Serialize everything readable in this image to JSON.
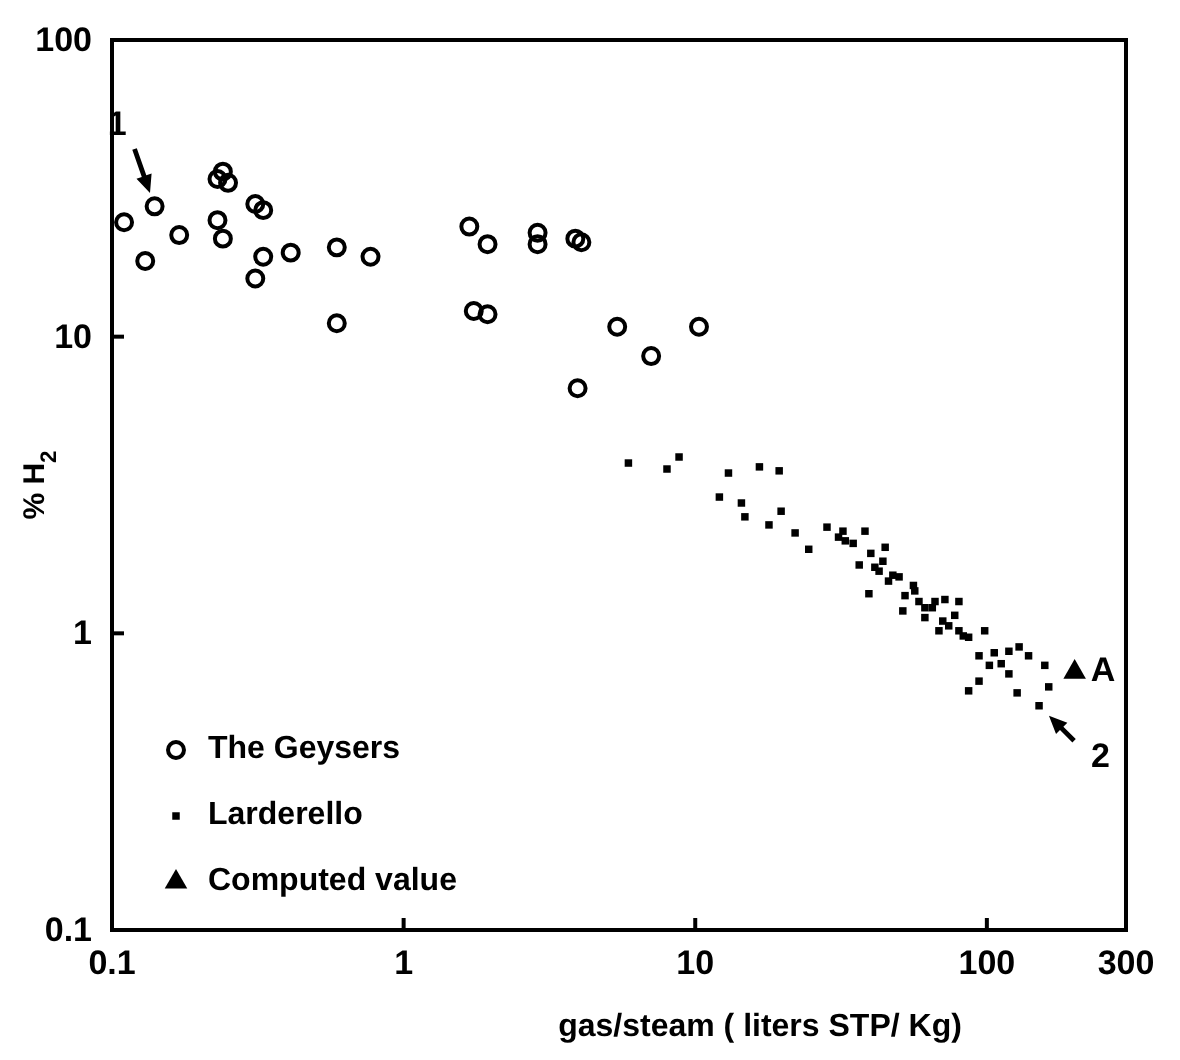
{
  "chart_data": {
    "type": "scatter",
    "xlabel": "gas/steam ( liters STP/ Kg)",
    "ylabel": "% H$_{2}$",
    "log": "xy",
    "xlim": [
      0.1,
      300
    ],
    "xticks": [
      0.1,
      1,
      10,
      100,
      300
    ],
    "ylim": [
      0.1,
      100
    ],
    "yticks": [
      0.1,
      1,
      10,
      100
    ],
    "grid": false,
    "legend": "bottom left",
    "series": [
      {
        "name": "The Geysers",
        "color": "#000000",
        "marker": "circle",
        "x": [
          0.11,
          0.14,
          0.13,
          0.17,
          0.23,
          0.24,
          0.25,
          0.23,
          0.24,
          0.31,
          0.33,
          0.33,
          0.31,
          0.41,
          0.59,
          0.77,
          0.59,
          1.68,
          1.94,
          1.74,
          1.94,
          2.88,
          2.88,
          3.88,
          4.07,
          5.4,
          7.06,
          3.95,
          10.3
        ],
        "values": [
          24.3,
          27.5,
          18,
          22,
          34,
          36,
          33,
          24.7,
          21.4,
          28,
          26.7,
          18.6,
          15.7,
          19.2,
          20,
          18.6,
          11.1,
          23.5,
          20.5,
          12.2,
          11.9,
          22.4,
          20.5,
          21.4,
          20.8,
          10.8,
          8.6,
          6.7,
          10.8
        ]
      },
      {
        "name": "Larderello",
        "color": "#000000",
        "marker": "square",
        "x": [
          5.9,
          8.0,
          8.8,
          13,
          16.6,
          19.4,
          12.1,
          14.4,
          14.8,
          19.7,
          17.9,
          22,
          24.5,
          28.3,
          32.1,
          32.7,
          34.8,
          38.2,
          44.8,
          44,
          41.3,
          47.6,
          39.4,
          50,
          52.4,
          56.6,
          58.5,
          51.5,
          61.3,
          66.4,
          71.8,
          80.2,
          61.3,
          70.6,
          77.6,
          68.5,
          80.2,
          86.6,
          98.3,
          94,
          106,
          119,
          129,
          139,
          102,
          112,
          119,
          158,
          94,
          86.6,
          127,
          163,
          151,
          42.7,
          46,
          56,
          65,
          74,
          83,
          36.5,
          31,
          40
        ],
        "values": [
          3.75,
          3.58,
          3.93,
          3.47,
          3.64,
          3.53,
          2.88,
          2.75,
          2.47,
          2.58,
          2.32,
          2.18,
          1.92,
          2.28,
          2.21,
          2.05,
          2.01,
          2.21,
          1.95,
          1.75,
          1.67,
          1.57,
          1.36,
          1.55,
          1.34,
          1.39,
          1.28,
          1.19,
          1.22,
          1.28,
          1.3,
          1.28,
          1.13,
          1.1,
          1.15,
          1.02,
          1.02,
          0.97,
          1.02,
          0.84,
          0.86,
          0.87,
          0.9,
          0.84,
          0.78,
          0.79,
          0.73,
          0.78,
          0.69,
          0.64,
          0.63,
          0.66,
          0.57,
          1.62,
          1.5,
          1.45,
          1.22,
          1.06,
          0.98,
          1.7,
          2.11,
          1.86
        ]
      },
      {
        "name": "Computed value",
        "color": "#000000",
        "marker": "triangle",
        "x": [
          200
        ],
        "values": [
          0.74
        ]
      }
    ],
    "annotations": [
      {
        "text": "1",
        "x": 0.14,
        "y": 27.5
      },
      {
        "text": "2",
        "x": 151,
        "y": 0.57
      },
      {
        "text": "A",
        "x": 200,
        "y": 0.74
      }
    ]
  }
}
